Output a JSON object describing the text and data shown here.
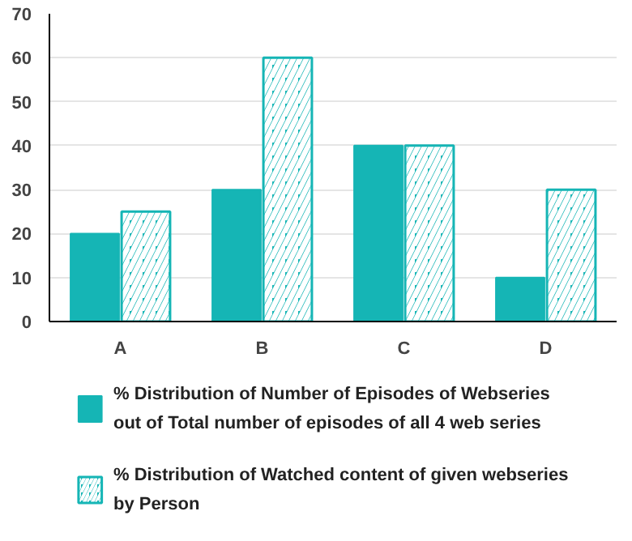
{
  "chart_data": {
    "type": "bar",
    "categories": [
      "A",
      "B",
      "C",
      "D"
    ],
    "series": [
      {
        "name": "% Distribution of Number of Episodes of Webseries out of Total number of episodes of all 4 web series",
        "color": "#15b5b5",
        "values": [
          20,
          30,
          40,
          10
        ]
      },
      {
        "name": "% Distribution of Watched content of given webseries by Person",
        "color": "#15b5b5",
        "values": [
          25,
          60,
          40,
          30
        ]
      }
    ],
    "ylim": [
      0,
      70
    ],
    "yticks": [
      0,
      10,
      20,
      30,
      40,
      50,
      60,
      70
    ],
    "grid": "y",
    "legend": "bottom"
  }
}
